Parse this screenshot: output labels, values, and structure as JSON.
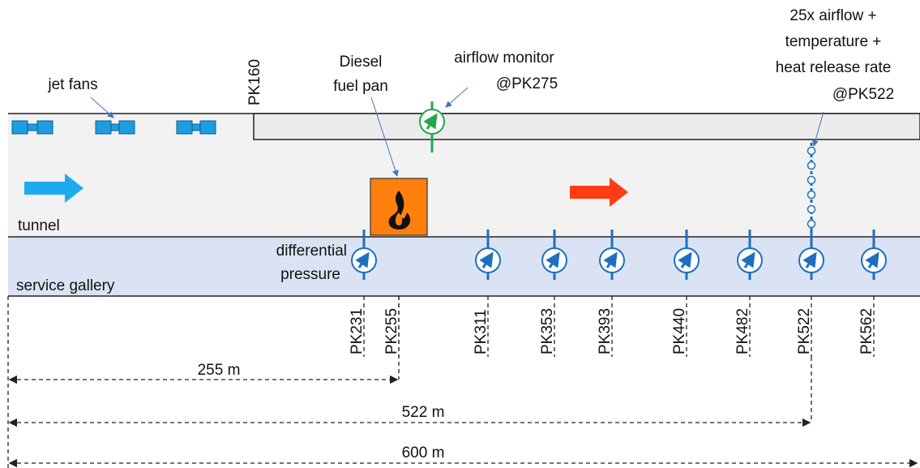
{
  "labels": {
    "jet_fans": "jet fans",
    "pk160": "PK160",
    "fuel_pan": [
      "Diesel",
      "fuel pan"
    ],
    "airflow_monitor": [
      "airflow monitor",
      "@PK275"
    ],
    "sensor_chain": [
      "25x airflow +",
      "temperature +",
      "heat release rate",
      "@PK522"
    ],
    "tunnel": "tunnel",
    "service_gallery": "service gallery",
    "differential_pressure": [
      "differential",
      "pressure"
    ]
  },
  "stations": [
    "PK231",
    "PK255",
    "PK311",
    "PK353",
    "PK393",
    "PK440",
    "PK482",
    "PK522",
    "PK562"
  ],
  "dimensions": [
    "255 m",
    "522 m",
    "600 m"
  ]
}
